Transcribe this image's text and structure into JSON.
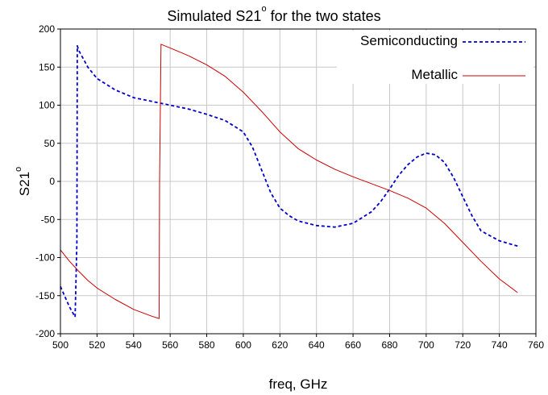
{
  "chart_data": {
    "type": "line",
    "title": "Simulated S21",
    "title_superscript": "o",
    "title_suffix": " for the two states",
    "xlabel": "freq, GHz",
    "ylabel": "S21",
    "ylabel_superscript": "o",
    "xlim": [
      500,
      760
    ],
    "ylim": [
      -200,
      200
    ],
    "xticks": [
      500,
      520,
      540,
      560,
      580,
      600,
      620,
      640,
      660,
      680,
      700,
      720,
      740,
      760
    ],
    "yticks": [
      -200,
      -150,
      -100,
      -50,
      0,
      50,
      100,
      150,
      200
    ],
    "grid": true,
    "legend_position": "top-right",
    "series": [
      {
        "name": "Semiconducting",
        "color": "#0000cc",
        "style": "dashed",
        "x": [
          500,
          505,
          508,
          509,
          509.2,
          510,
          515,
          520,
          530,
          540,
          550,
          560,
          570,
          580,
          590,
          600,
          605,
          610,
          615,
          620,
          625,
          630,
          640,
          650,
          660,
          670,
          675,
          680,
          685,
          690,
          695,
          700,
          705,
          710,
          715,
          720,
          725,
          730,
          740,
          750
        ],
        "y": [
          -138,
          -165,
          -178,
          -80,
          178,
          172,
          150,
          135,
          120,
          110,
          105,
          100,
          95,
          88,
          80,
          65,
          45,
          15,
          -15,
          -35,
          -45,
          -52,
          -58,
          -60,
          -55,
          -40,
          -27,
          -10,
          8,
          22,
          32,
          37,
          35,
          25,
          5,
          -20,
          -45,
          -65,
          -78,
          -85
        ]
      },
      {
        "name": "Metallic",
        "color": "#cc0000",
        "style": "solid",
        "x": [
          500,
          505,
          510,
          515,
          520,
          530,
          540,
          550,
          554,
          554.2,
          555,
          560,
          570,
          580,
          590,
          600,
          610,
          620,
          630,
          640,
          650,
          660,
          670,
          680,
          690,
          700,
          710,
          720,
          730,
          740,
          750
        ],
        "y": [
          -90,
          -105,
          -118,
          -130,
          -140,
          -155,
          -168,
          -177,
          -180,
          0,
          180,
          175,
          165,
          153,
          138,
          117,
          92,
          65,
          43,
          28,
          16,
          6,
          -3,
          -12,
          -22,
          -35,
          -55,
          -80,
          -105,
          -128,
          -146
        ]
      }
    ]
  }
}
